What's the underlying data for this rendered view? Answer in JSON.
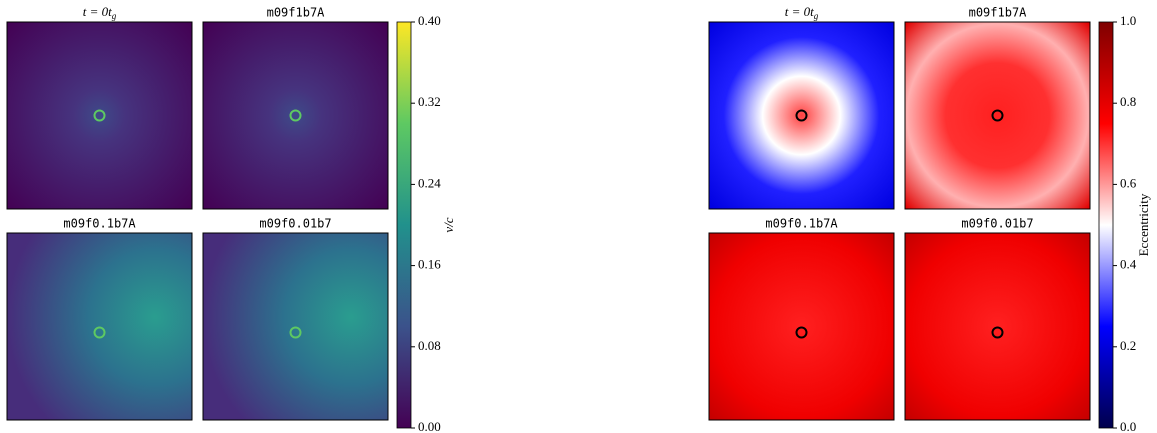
{
  "figures": [
    {
      "panels": [
        {
          "title": "t = 0tg"
        },
        {
          "title": "m09f1b7A"
        },
        {
          "title": "m09f0.1b7A"
        },
        {
          "title": "m09f0.01b7"
        }
      ],
      "colorbar": {
        "label": "v/c",
        "colormap": "viridis",
        "lim": [
          0,
          0.4
        ],
        "ticks": [
          {
            "value": 0,
            "label": "0.00"
          },
          0.08,
          0.16,
          0.24,
          0.32,
          {
            "value": 0.4,
            "label": "0.40"
          }
        ]
      }
    },
    {
      "panels": [
        {
          "title": "t = 0tg"
        },
        {
          "title": "m09f1b7A"
        },
        {
          "title": "m09f0.1b7A"
        },
        {
          "title": "m09f0.01b7"
        }
      ],
      "colorbar": {
        "label": "Eccentricity",
        "colormap": "seismic",
        "lim": [
          0,
          1
        ],
        "ticks": [
          {
            "value": 0,
            "label": "0.0"
          },
          0.2,
          0.4,
          0.6,
          0.8,
          {
            "value": 1,
            "label": "1.0"
          }
        ]
      }
    }
  ]
}
